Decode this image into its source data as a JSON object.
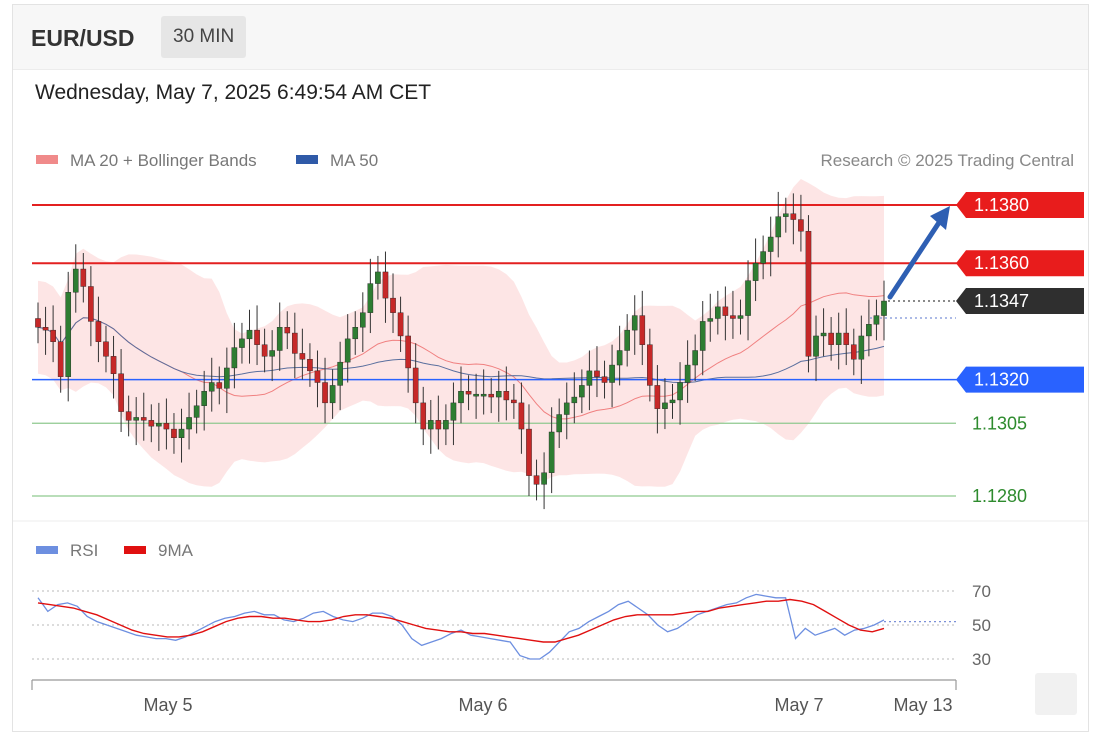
{
  "header": {
    "symbol": "EUR/USD",
    "timeframe": "30 MIN"
  },
  "datetime": "Wednesday, May 7, 2025 6:49:54 AM CET",
  "legend": {
    "ma20": "MA 20 + Bollinger Bands",
    "ma50": "MA 50",
    "credit": "Research © 2025 Trading Central",
    "rsi": "RSI",
    "ma9": "9MA"
  },
  "colors": {
    "up": "#2e7d32",
    "down": "#c62828",
    "resistance": "#e32020",
    "support_blue": "#2962ff",
    "support_green": "#2e8b2e",
    "band": "#fde0e0",
    "ma50": "#5a6f9e"
  },
  "levels": [
    {
      "value": "1.1380",
      "kind": "resistance"
    },
    {
      "value": "1.1360",
      "kind": "resistance"
    },
    {
      "value": "1.1347",
      "kind": "current"
    },
    {
      "value": "1.1320",
      "kind": "pivot"
    },
    {
      "value": "1.1305",
      "kind": "support"
    },
    {
      "value": "1.1280",
      "kind": "support"
    }
  ],
  "rsi_levels": [
    "70",
    "50",
    "30"
  ],
  "x_labels": [
    "May 5",
    "May 6",
    "May 7",
    "May 13"
  ],
  "chart_data": {
    "type": "candlestick",
    "title": "EUR/USD 30 MIN",
    "price_range": [
      1.1275,
      1.1388
    ],
    "series": [
      {
        "name": "EUR/USD",
        "values": [
          1.1338,
          1.1337,
          1.1333,
          1.1321,
          1.135,
          1.1358,
          1.1352,
          1.134,
          1.1333,
          1.1328,
          1.1322,
          1.1309,
          1.1306,
          1.1307,
          1.1306,
          1.1304,
          1.1305,
          1.1303,
          1.13,
          1.1303,
          1.1307,
          1.1311,
          1.1316,
          1.1319,
          1.1317,
          1.1324,
          1.1331,
          1.1334,
          1.1337,
          1.1332,
          1.1328,
          1.133,
          1.1338,
          1.1336,
          1.1329,
          1.1327,
          1.1323,
          1.1319,
          1.1312,
          1.1318,
          1.1326,
          1.1334,
          1.1338,
          1.1343,
          1.1353,
          1.1357,
          1.1348,
          1.1343,
          1.1335,
          1.1324,
          1.1312,
          1.1303,
          1.1306,
          1.1303,
          1.1306,
          1.1312,
          1.1316,
          1.1315,
          1.1315,
          1.1315,
          1.1314,
          1.1316,
          1.1313,
          1.1312,
          1.1303,
          1.1287,
          1.1284,
          1.1288,
          1.1302,
          1.1308,
          1.1312,
          1.1314,
          1.1318,
          1.1323,
          1.1321,
          1.1319,
          1.1325,
          1.133,
          1.1337,
          1.1342,
          1.1332,
          1.1318,
          1.131,
          1.1312,
          1.1313,
          1.1319,
          1.1325,
          1.133,
          1.134,
          1.1341,
          1.1345,
          1.1342,
          1.1341,
          1.1342,
          1.1354,
          1.136,
          1.1364,
          1.1369,
          1.1376,
          1.1377,
          1.1375,
          1.1371,
          1.1328,
          1.1335,
          1.1336,
          1.1332,
          1.1336,
          1.1332,
          1.1327,
          1.1335,
          1.1339,
          1.1342,
          1.1347
        ]
      }
    ],
    "ma20_values_visible": true,
    "ma50_values_visible": true,
    "rsi": {
      "ylim": [
        25,
        75
      ],
      "levels": [
        30,
        50,
        70
      ],
      "values": [
        66,
        58,
        62,
        63,
        61,
        55,
        52,
        50,
        48,
        46,
        44,
        43,
        42,
        42,
        41,
        43,
        46,
        49,
        52,
        54,
        55,
        57,
        58,
        56,
        56,
        53,
        52,
        54,
        57,
        58,
        55,
        53,
        52,
        54,
        57,
        57,
        55,
        50,
        42,
        38,
        40,
        42,
        45,
        47,
        44,
        43,
        42,
        41,
        40,
        32,
        30,
        30,
        34,
        40,
        46,
        48,
        52,
        55,
        58,
        62,
        64,
        60,
        56,
        50,
        46,
        48,
        52,
        56,
        58,
        60,
        62,
        63,
        66,
        68,
        67,
        66,
        66,
        42,
        48,
        44,
        46,
        48,
        44,
        47,
        48,
        50,
        53
      ]
    },
    "ma9": {
      "values": [
        63,
        62,
        61,
        60,
        58,
        56,
        53,
        50,
        47,
        45,
        44,
        43,
        43,
        44,
        46,
        49,
        52,
        54,
        55,
        55,
        54,
        54,
        53,
        52,
        52,
        53,
        55,
        56,
        56,
        55,
        54,
        52,
        50,
        48,
        47,
        46,
        46,
        45,
        45,
        44,
        43,
        42,
        41,
        40,
        40,
        42,
        44,
        47,
        50,
        53,
        55,
        56,
        56,
        56,
        56,
        57,
        58,
        58,
        60,
        61,
        62,
        63,
        64,
        64,
        65,
        64,
        62,
        58,
        54,
        50,
        47,
        46,
        48
      ]
    }
  }
}
